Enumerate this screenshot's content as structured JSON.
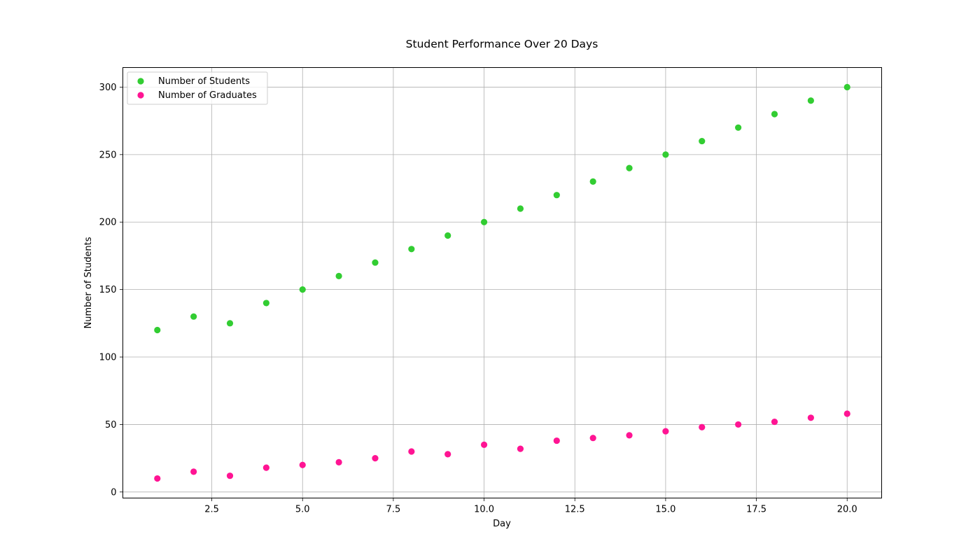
{
  "chart_data": {
    "type": "scatter",
    "title": "Student Performance Over 20 Days",
    "xlabel": "Day",
    "ylabel": "Number of Students",
    "xlim": [
      0.05,
      20.95
    ],
    "ylim": [
      -4.5,
      314.5
    ],
    "xticks": [
      2.5,
      5.0,
      7.5,
      10.0,
      12.5,
      15.0,
      17.5,
      20.0
    ],
    "xtick_labels": [
      "2.5",
      "5.0",
      "7.5",
      "10.0",
      "12.5",
      "15.0",
      "17.5",
      "20.0"
    ],
    "yticks": [
      0,
      50,
      100,
      150,
      200,
      250,
      300
    ],
    "ytick_labels": [
      "0",
      "50",
      "100",
      "150",
      "200",
      "250",
      "300"
    ],
    "grid": true,
    "legend_position": "top-left",
    "x": [
      1,
      2,
      3,
      4,
      5,
      6,
      7,
      8,
      9,
      10,
      11,
      12,
      13,
      14,
      15,
      16,
      17,
      18,
      19,
      20
    ],
    "series": [
      {
        "name": "Number of Students",
        "color": "#32cd32",
        "values": [
          120,
          130,
          125,
          140,
          150,
          160,
          170,
          180,
          190,
          200,
          210,
          220,
          230,
          240,
          250,
          260,
          270,
          280,
          290,
          300
        ]
      },
      {
        "name": "Number of Graduates",
        "color": "#ff1493",
        "values": [
          10,
          15,
          12,
          18,
          20,
          22,
          25,
          30,
          28,
          35,
          32,
          38,
          40,
          42,
          45,
          48,
          50,
          52,
          55,
          58
        ]
      }
    ]
  }
}
